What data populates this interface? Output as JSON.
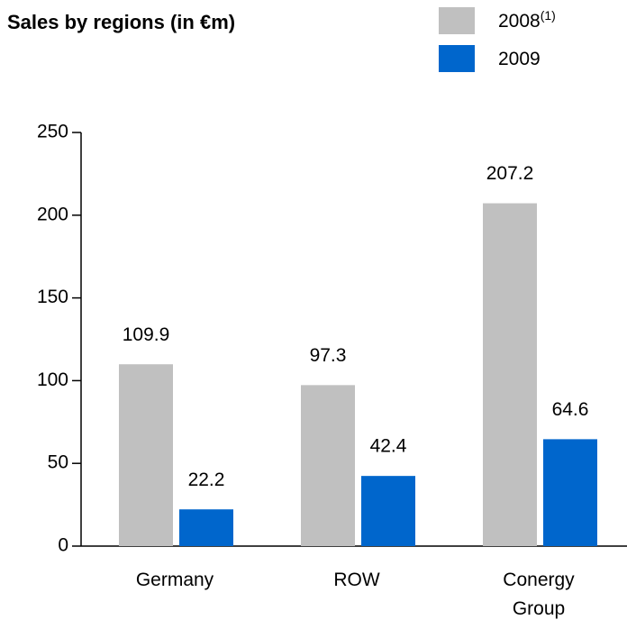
{
  "chart_data": {
    "type": "bar",
    "title": "Sales by regions (in €m)",
    "categories": [
      "Germany",
      "ROW",
      "Conergy Group"
    ],
    "series": [
      {
        "name": "2008",
        "footnote_marker": "(1)",
        "color": "#c0c0c0",
        "values": [
          109.9,
          97.3,
          207.2
        ]
      },
      {
        "name": "2009",
        "color": "#0066cc",
        "values": [
          22.2,
          42.4,
          64.6
        ]
      }
    ],
    "ylim": [
      0,
      250
    ],
    "yticks": [
      0,
      50,
      100,
      150,
      200,
      250
    ],
    "grid": false,
    "legend": "top-right"
  }
}
